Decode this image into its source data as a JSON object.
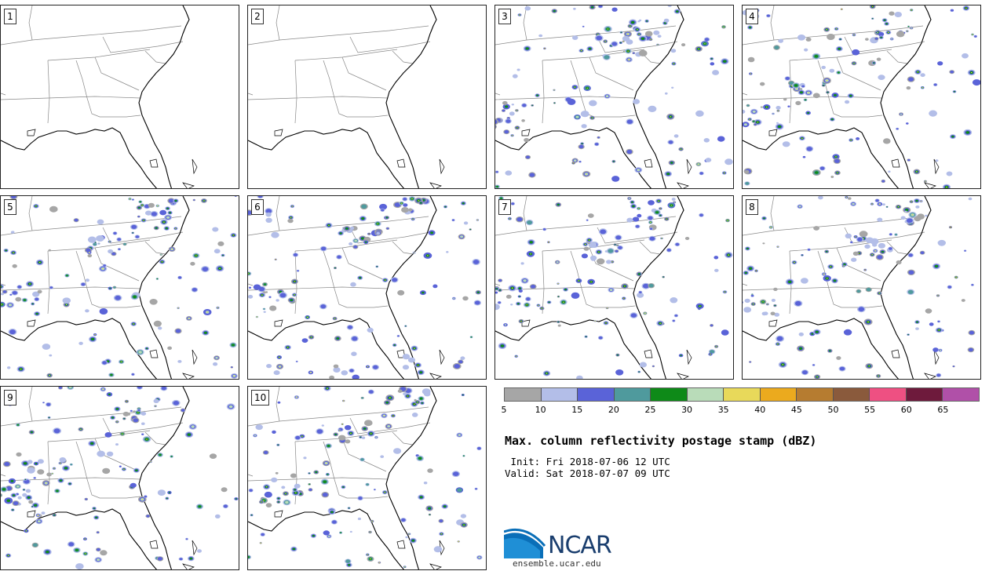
{
  "panels": [
    {
      "label": "1"
    },
    {
      "label": "2"
    },
    {
      "label": "3"
    },
    {
      "label": "4"
    },
    {
      "label": "5"
    },
    {
      "label": "6"
    },
    {
      "label": "7"
    },
    {
      "label": "8"
    },
    {
      "label": "9"
    },
    {
      "label": "10"
    }
  ],
  "colorbar": {
    "colors": [
      "#a6a6a6",
      "#b3bee8",
      "#5a63d8",
      "#4f9a9d",
      "#0e8a18",
      "#b9dcb9",
      "#e8d95a",
      "#ebaa1e",
      "#b67c30",
      "#8a5a3c",
      "#ee5082",
      "#6e1a3c",
      "#b050a8"
    ],
    "ticks": [
      "5",
      "10",
      "15",
      "20",
      "25",
      "30",
      "35",
      "40",
      "45",
      "50",
      "55",
      "60",
      "65"
    ]
  },
  "title": "Max. column reflectivity postage stamp (dBZ)",
  "init": " Init: Fri 2018-07-06 12 UTC",
  "valid": "Valid: Sat 2018-07-07 09 UTC",
  "logo": {
    "text": "NCAR",
    "url": "ensemble.ucar.edu"
  }
}
